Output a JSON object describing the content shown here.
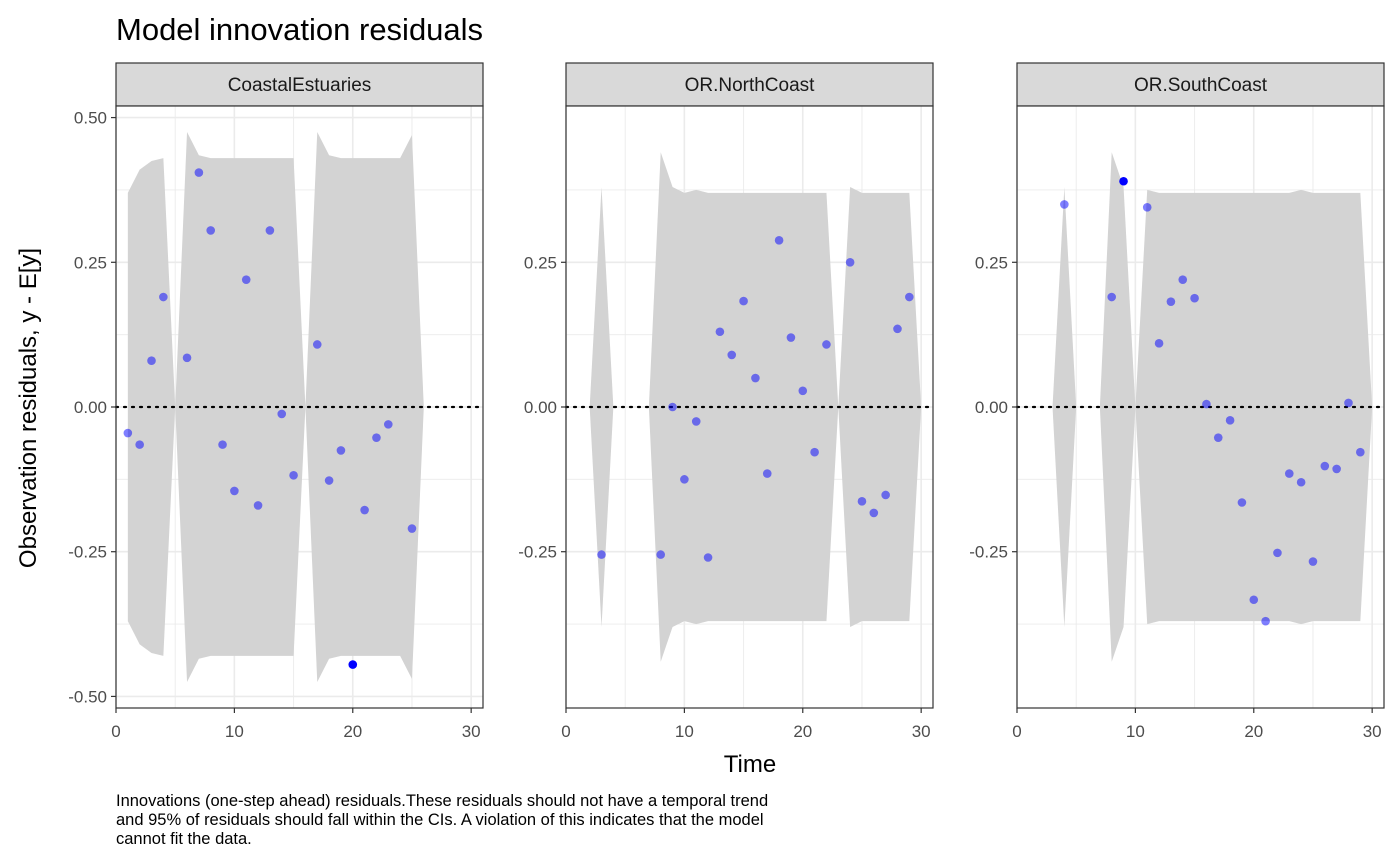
{
  "title": "Model innovation residuals",
  "caption": "Innovations (one-step ahead) residuals.These residuals should not have a temporal trend and 95% of residuals should fall within the CIs. A violation of this indicates that the model cannot fit the data.",
  "colors": {
    "point": "#0000ff",
    "band": "#d3d3d3",
    "strip": "#d9d9d9",
    "grid": "#ebebeb"
  },
  "chart_data": {
    "type": "scatter",
    "title": "Model innovation residuals",
    "xlabel": "Time",
    "ylabel": "Observation residuals, y - E[y]",
    "xlim": [
      0,
      31
    ],
    "x_ticks": [
      0,
      10,
      20,
      30
    ],
    "x_tick_labels": [
      "0",
      "10",
      "20",
      "30"
    ],
    "grid": true,
    "reference_line": {
      "y": 0,
      "style": "dotted"
    },
    "panels": [
      {
        "name": "CoastalEstuaries",
        "ylim": [
          -0.52,
          0.52
        ],
        "y_ticks": [
          -0.5,
          -0.25,
          0,
          0.25,
          0.5
        ],
        "y_tick_labels": [
          "-0.50",
          "-0.25",
          "0.00",
          "0.25",
          "0.50"
        ],
        "band": [
          [
            1,
            -0.37,
            0.37
          ],
          [
            2,
            -0.41,
            0.41
          ],
          [
            3,
            -0.425,
            0.425
          ],
          [
            4,
            -0.43,
            0.43
          ],
          [
            5,
            0,
            0
          ],
          [
            6,
            -0.475,
            0.475
          ],
          [
            7,
            -0.435,
            0.435
          ],
          [
            8,
            -0.43,
            0.43
          ],
          [
            9,
            -0.43,
            0.43
          ],
          [
            10,
            -0.43,
            0.43
          ],
          [
            11,
            -0.43,
            0.43
          ],
          [
            12,
            -0.43,
            0.43
          ],
          [
            13,
            -0.43,
            0.43
          ],
          [
            14,
            -0.43,
            0.43
          ],
          [
            15,
            -0.43,
            0.43
          ],
          [
            16,
            0,
            0
          ],
          [
            17,
            -0.475,
            0.475
          ],
          [
            18,
            -0.435,
            0.435
          ],
          [
            19,
            -0.43,
            0.43
          ],
          [
            20,
            -0.43,
            0.43
          ],
          [
            21,
            -0.43,
            0.43
          ],
          [
            22,
            -0.43,
            0.43
          ],
          [
            23,
            -0.43,
            0.43
          ],
          [
            24,
            -0.43,
            0.43
          ],
          [
            25,
            -0.47,
            0.47
          ],
          [
            26,
            0,
            0
          ]
        ],
        "points": [
          [
            1,
            -0.045
          ],
          [
            2,
            -0.065
          ],
          [
            3,
            0.08
          ],
          [
            4,
            0.19
          ],
          [
            6,
            0.085
          ],
          [
            7,
            0.405
          ],
          [
            8,
            0.305
          ],
          [
            9,
            -0.065
          ],
          [
            10,
            -0.145
          ],
          [
            11,
            0.22
          ],
          [
            12,
            -0.17
          ],
          [
            13,
            0.305
          ],
          [
            14,
            -0.012
          ],
          [
            15,
            -0.118
          ],
          [
            17,
            0.108
          ],
          [
            18,
            -0.127
          ],
          [
            19,
            -0.075
          ],
          [
            20,
            -0.445
          ],
          [
            21,
            -0.178
          ],
          [
            22,
            -0.053
          ],
          [
            23,
            -0.03
          ],
          [
            25,
            -0.21
          ]
        ]
      },
      {
        "name": "OR.NorthCoast",
        "ylim": [
          -0.52,
          0.52
        ],
        "y_ticks": [
          -0.25,
          0,
          0.25
        ],
        "y_tick_labels": [
          "-0.25",
          "0.00",
          "0.25"
        ],
        "band": [
          [
            2,
            0,
            0
          ],
          [
            3,
            -0.38,
            0.38
          ],
          [
            4,
            0,
            0
          ],
          [
            7,
            0,
            0
          ],
          [
            8,
            -0.44,
            0.44
          ],
          [
            9,
            -0.38,
            0.38
          ],
          [
            10,
            -0.37,
            0.37
          ],
          [
            11,
            -0.375,
            0.375
          ],
          [
            12,
            -0.37,
            0.37
          ],
          [
            13,
            -0.37,
            0.37
          ],
          [
            14,
            -0.37,
            0.37
          ],
          [
            15,
            -0.37,
            0.37
          ],
          [
            16,
            -0.37,
            0.37
          ],
          [
            17,
            -0.37,
            0.37
          ],
          [
            18,
            -0.37,
            0.37
          ],
          [
            19,
            -0.37,
            0.37
          ],
          [
            20,
            -0.37,
            0.37
          ],
          [
            21,
            -0.37,
            0.37
          ],
          [
            22,
            -0.37,
            0.37
          ],
          [
            23,
            0,
            0
          ],
          [
            24,
            -0.38,
            0.38
          ],
          [
            25,
            -0.37,
            0.37
          ],
          [
            26,
            -0.37,
            0.37
          ],
          [
            27,
            -0.37,
            0.37
          ],
          [
            28,
            -0.37,
            0.37
          ],
          [
            29,
            -0.37,
            0.37
          ],
          [
            30,
            0,
            0
          ]
        ],
        "points": [
          [
            3,
            -0.255
          ],
          [
            8,
            -0.255
          ],
          [
            9,
            0.0
          ],
          [
            10,
            -0.125
          ],
          [
            11,
            -0.025
          ],
          [
            12,
            -0.26
          ],
          [
            13,
            0.13
          ],
          [
            14,
            0.09
          ],
          [
            15,
            0.183
          ],
          [
            16,
            0.05
          ],
          [
            17,
            -0.115
          ],
          [
            18,
            0.288
          ],
          [
            19,
            0.12
          ],
          [
            20,
            0.028
          ],
          [
            21,
            -0.078
          ],
          [
            22,
            0.108
          ],
          [
            24,
            0.25
          ],
          [
            25,
            -0.163
          ],
          [
            26,
            -0.183
          ],
          [
            27,
            -0.152
          ],
          [
            28,
            0.135
          ],
          [
            29,
            0.19
          ]
        ]
      },
      {
        "name": "OR.SouthCoast",
        "ylim": [
          -0.52,
          0.52
        ],
        "y_ticks": [
          -0.25,
          0,
          0.25
        ],
        "y_tick_labels": [
          "-0.25",
          "0.00",
          "0.25"
        ],
        "band": [
          [
            3,
            0,
            0
          ],
          [
            4,
            -0.38,
            0.38
          ],
          [
            5,
            0,
            0
          ],
          [
            7,
            0,
            0
          ],
          [
            8,
            -0.44,
            0.44
          ],
          [
            9,
            -0.38,
            0.38
          ],
          [
            10,
            0,
            0
          ],
          [
            11,
            -0.375,
            0.375
          ],
          [
            12,
            -0.37,
            0.37
          ],
          [
            13,
            -0.37,
            0.37
          ],
          [
            14,
            -0.37,
            0.37
          ],
          [
            15,
            -0.37,
            0.37
          ],
          [
            16,
            -0.37,
            0.37
          ],
          [
            17,
            -0.37,
            0.37
          ],
          [
            18,
            -0.37,
            0.37
          ],
          [
            19,
            -0.37,
            0.37
          ],
          [
            20,
            -0.37,
            0.37
          ],
          [
            21,
            -0.37,
            0.37
          ],
          [
            22,
            -0.37,
            0.37
          ],
          [
            23,
            -0.37,
            0.37
          ],
          [
            24,
            -0.375,
            0.375
          ],
          [
            25,
            -0.37,
            0.37
          ],
          [
            26,
            -0.37,
            0.37
          ],
          [
            27,
            -0.37,
            0.37
          ],
          [
            28,
            -0.37,
            0.37
          ],
          [
            29,
            -0.37,
            0.37
          ],
          [
            30,
            0,
            0
          ]
        ],
        "points": [
          [
            4,
            0.35
          ],
          [
            8,
            0.19
          ],
          [
            9,
            0.39
          ],
          [
            11,
            0.345
          ],
          [
            12,
            0.11
          ],
          [
            13,
            0.182
          ],
          [
            14,
            0.22
          ],
          [
            15,
            0.188
          ],
          [
            16,
            0.005
          ],
          [
            17,
            -0.053
          ],
          [
            18,
            -0.023
          ],
          [
            19,
            -0.165
          ],
          [
            20,
            -0.333
          ],
          [
            21,
            -0.37
          ],
          [
            22,
            -0.252
          ],
          [
            23,
            -0.115
          ],
          [
            24,
            -0.13
          ],
          [
            25,
            -0.267
          ],
          [
            26,
            -0.102
          ],
          [
            27,
            -0.107
          ],
          [
            28,
            0.007
          ],
          [
            29,
            -0.078
          ]
        ]
      }
    ]
  }
}
